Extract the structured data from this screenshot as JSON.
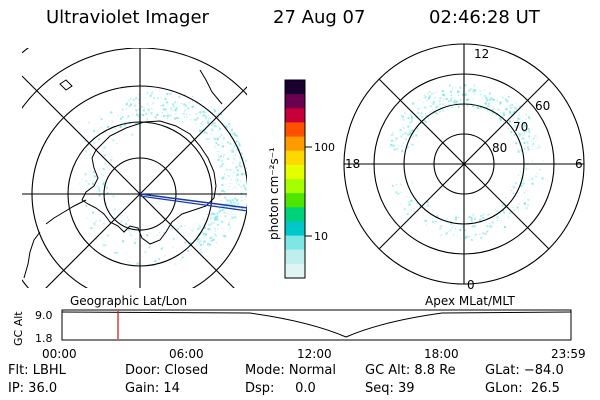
{
  "header": {
    "instrument": "Ultraviolet Imager",
    "date": "27 Aug 07",
    "time": "02:46:28 UT"
  },
  "colorbar": {
    "unit_label": "photon cm⁻²s⁻¹",
    "tick_labels": [
      "100",
      "10"
    ],
    "colors": [
      "#1a0030",
      "#6a0050",
      "#c8003a",
      "#ff5000",
      "#ff9a00",
      "#ffd800",
      "#e6ff00",
      "#a6ff00",
      "#4ee600",
      "#00d27a",
      "#00c8c8",
      "#7fe6e6",
      "#bfeeee",
      "#e0f4f4"
    ]
  },
  "polar_plot": {
    "mlt_labels": [
      "12",
      "18",
      "6",
      "0"
    ],
    "lat_labels": [
      "60",
      "70",
      "80"
    ]
  },
  "altitude_strip": {
    "axis_label": "GC Alt",
    "left_caption": "Geographic Lat/Lon",
    "right_caption": "Apex MLat/MLT",
    "y_ticks": [
      "9.0",
      "1.8"
    ],
    "x_ticks": [
      "00:00",
      "06:00",
      "12:00",
      "18:00",
      "23:59"
    ]
  },
  "status": {
    "row1": {
      "filter": "Flt: LBHL",
      "door": "Door: Closed",
      "mode": "Mode: Normal",
      "gc_alt": "GC Alt: 8.8 Re",
      "glat": "GLat: −84.0"
    },
    "row2": {
      "ip": "IP: 36.0",
      "gain": "Gain: 14",
      "dsp": "Dsp:     0.0",
      "seq": "Seq: 39",
      "glon": "GLon:  26.5"
    }
  },
  "colors": {
    "aurora_fill": "#7fe6e6",
    "terminator_line": "#1a3aa8",
    "time_marker": "#d01010"
  }
}
